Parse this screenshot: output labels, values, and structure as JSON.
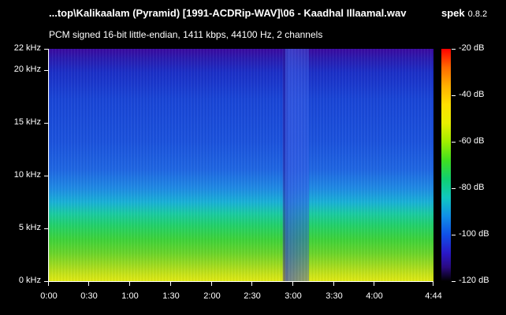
{
  "window": {
    "file_title": "...top\\Kalikaalam (Pyramid) [1991-ACDRip-WAV]\\06 - Kaadhal Illaamal.wav",
    "app_name": "spek",
    "app_version": "0.8.2",
    "format_info": "PCM signed 16-bit little-endian, 1411 kbps, 44100 Hz, 2 channels"
  },
  "frequency_axis": {
    "labels": [
      "22 kHz",
      "20 kHz",
      "15 kHz",
      "10 kHz",
      "5 kHz",
      "0 kHz"
    ]
  },
  "time_axis": {
    "labels": [
      "0:00",
      "0:30",
      "1:00",
      "1:30",
      "2:00",
      "2:30",
      "3:00",
      "3:30",
      "4:00",
      "4:44"
    ]
  },
  "color_scale": {
    "labels": [
      "-20 dB",
      "-40 dB",
      "-60 dB",
      "-80 dB",
      "-100 dB",
      "-120 dB"
    ]
  },
  "colors": {
    "background": "#000000",
    "text": "#ffffff"
  }
}
